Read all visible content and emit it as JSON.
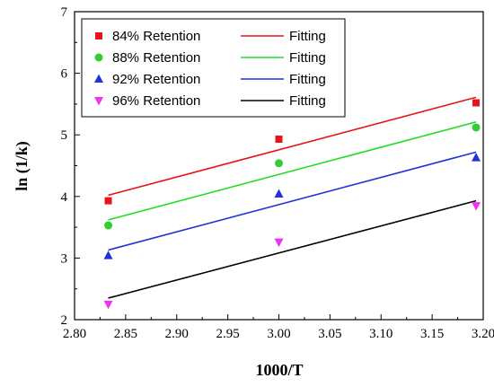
{
  "chart_data": {
    "type": "scatter",
    "xlabel": "1000/T",
    "ylabel": "ln (1/k)",
    "xlim": [
      2.8,
      3.2
    ],
    "ylim": [
      2,
      7
    ],
    "xticks": [
      "2.80",
      "2.85",
      "2.90",
      "2.95",
      "3.00",
      "3.05",
      "3.10",
      "3.15",
      "3.20"
    ],
    "yticks": [
      "2",
      "3",
      "4",
      "5",
      "6",
      "7"
    ],
    "x": [
      2.833,
      3.0,
      3.193
    ],
    "grid": false,
    "legend_position": "top-left",
    "series": [
      {
        "name": "84% Retention",
        "marker": "square",
        "color": "#e8141b",
        "values": [
          3.93,
          4.93,
          5.52
        ],
        "fit_name": "Fitting",
        "fit_color": "#e8141b",
        "fit": [
          4.02,
          5.61
        ]
      },
      {
        "name": "88% Retention",
        "marker": "circle",
        "color": "#33cc33",
        "values": [
          3.53,
          4.54,
          5.12
        ],
        "fit_name": "Fitting",
        "fit_color": "#22dd22",
        "fit": [
          3.62,
          5.21
        ]
      },
      {
        "name": "92% Retention",
        "marker": "triangle-up",
        "color": "#1f33d6",
        "values": [
          3.04,
          4.04,
          4.63
        ],
        "fit_name": "Fitting",
        "fit_color": "#1f33d6",
        "fit": [
          3.13,
          4.72
        ]
      },
      {
        "name": "96% Retention",
        "marker": "triangle-down",
        "color": "#ee33ee",
        "values": [
          2.25,
          3.26,
          3.85
        ],
        "fit_name": "Fitting",
        "fit_color": "#000000",
        "fit": [
          2.35,
          3.93
        ]
      }
    ]
  }
}
